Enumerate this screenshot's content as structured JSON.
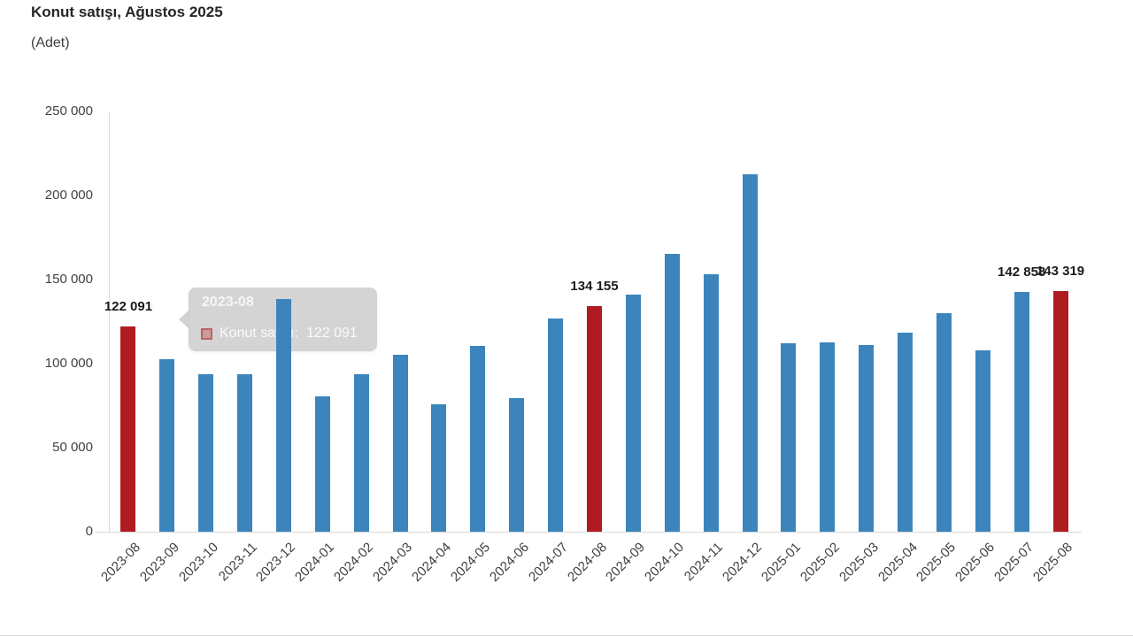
{
  "title": "Konut satışı, Ağustos 2025",
  "subtitle": "(Adet)",
  "colors": {
    "bar_blue": "#3b85bc",
    "bar_red": "#b01b21",
    "axis_line": "#d9d9d9",
    "axis_text": "#404040",
    "data_label_text": "#1a1a1a",
    "tooltip_bg": "rgba(205,205,205,0.85)",
    "tooltip_text": "#ffffff"
  },
  "tooltip": {
    "header": "2023-08",
    "series_label": "Konut satışı:",
    "value": "122 091"
  },
  "chart_data": {
    "type": "bar",
    "title": "Konut satışı, Ağustos 2025",
    "ylabel": "(Adet)",
    "xlabel": "",
    "ylim": [
      0,
      250000
    ],
    "ytick_step": 50000,
    "ytick_labels_top_down": [
      "250 000",
      "200 000",
      "150 000",
      "100 000",
      "50 000",
      "0"
    ],
    "grid": false,
    "legend_position": "none",
    "categories": [
      "2023-08",
      "2023-09",
      "2023-10",
      "2023-11",
      "2023-12",
      "2024-01",
      "2024-02",
      "2024-03",
      "2024-04",
      "2024-05",
      "2024-06",
      "2024-07",
      "2024-08",
      "2024-09",
      "2024-10",
      "2024-11",
      "2024-12",
      "2025-01",
      "2025-02",
      "2025-03",
      "2025-04",
      "2025-05",
      "2025-06",
      "2025-07",
      "2025-08"
    ],
    "values": [
      122091,
      102656,
      93761,
      93514,
      138577,
      80308,
      93902,
      105476,
      75569,
      110588,
      79313,
      127088,
      134155,
      140919,
      165138,
      153014,
      212637,
      112173,
      112818,
      110795,
      118359,
      130225,
      107723,
      142858,
      143319
    ],
    "highlighted_indices": [
      0,
      12,
      24
    ],
    "highlight_note": "August bars (2023-08, 2024-08, 2025-08) shown in red, others blue",
    "data_labels": [
      {
        "index": 0,
        "text": "122 091"
      },
      {
        "index": 12,
        "text": "134 155"
      },
      {
        "index": 23,
        "text": "142 858"
      },
      {
        "index": 24,
        "text": "143 319"
      }
    ]
  }
}
